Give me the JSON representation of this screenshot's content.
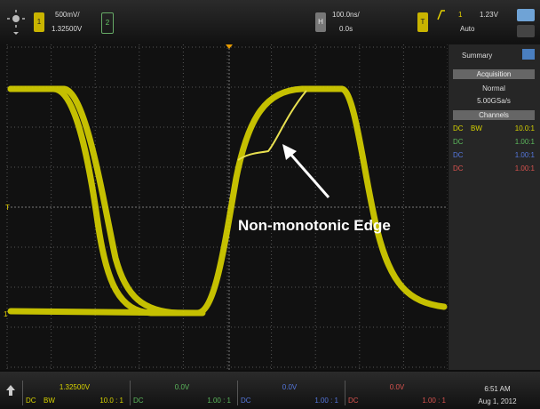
{
  "top_bar": {
    "ch1_scale": "500mV/",
    "ch1_offset": "1.32500V",
    "ch1_button": "1",
    "ch2_button": "2",
    "horizontal_button": "H",
    "time_scale": "100.0ns/",
    "time_delay": "0.0s",
    "trigger_button": "T",
    "trigger_source": "1",
    "trigger_level": "1.23V",
    "trigger_mode": "Auto"
  },
  "screen": {
    "marker_trigger": "T",
    "marker_ch1": "1",
    "annotation": "Non-monotonic Edge"
  },
  "sidebar": {
    "tab": "Summary",
    "acquisition_header": "Acquisition",
    "acquisition_mode": "Normal",
    "sample_rate": "5.00GSa/s",
    "channels_header": "Channels",
    "channels": [
      [
        "DC",
        "BW",
        "10.0:1"
      ],
      [
        "DC",
        "",
        "1.00:1"
      ],
      [
        "DC",
        "",
        "1.00:1"
      ],
      [
        "DC",
        "",
        "1.00:1"
      ]
    ]
  },
  "bottom_bar": {
    "channels": [
      {
        "offset": "1.32500V",
        "coupling": "DC",
        "bw": "BW",
        "probe": "10.0 : 1"
      },
      {
        "offset": "0.0V",
        "coupling": "DC",
        "probe": "1.00 : 1"
      },
      {
        "offset": "0.0V",
        "coupling": "DC",
        "probe": "1.00 : 1"
      },
      {
        "offset": "0.0V",
        "coupling": "DC",
        "probe": "1.00 : 1"
      }
    ],
    "time": "6:51 AM",
    "date": "Aug 1, 2012"
  }
}
